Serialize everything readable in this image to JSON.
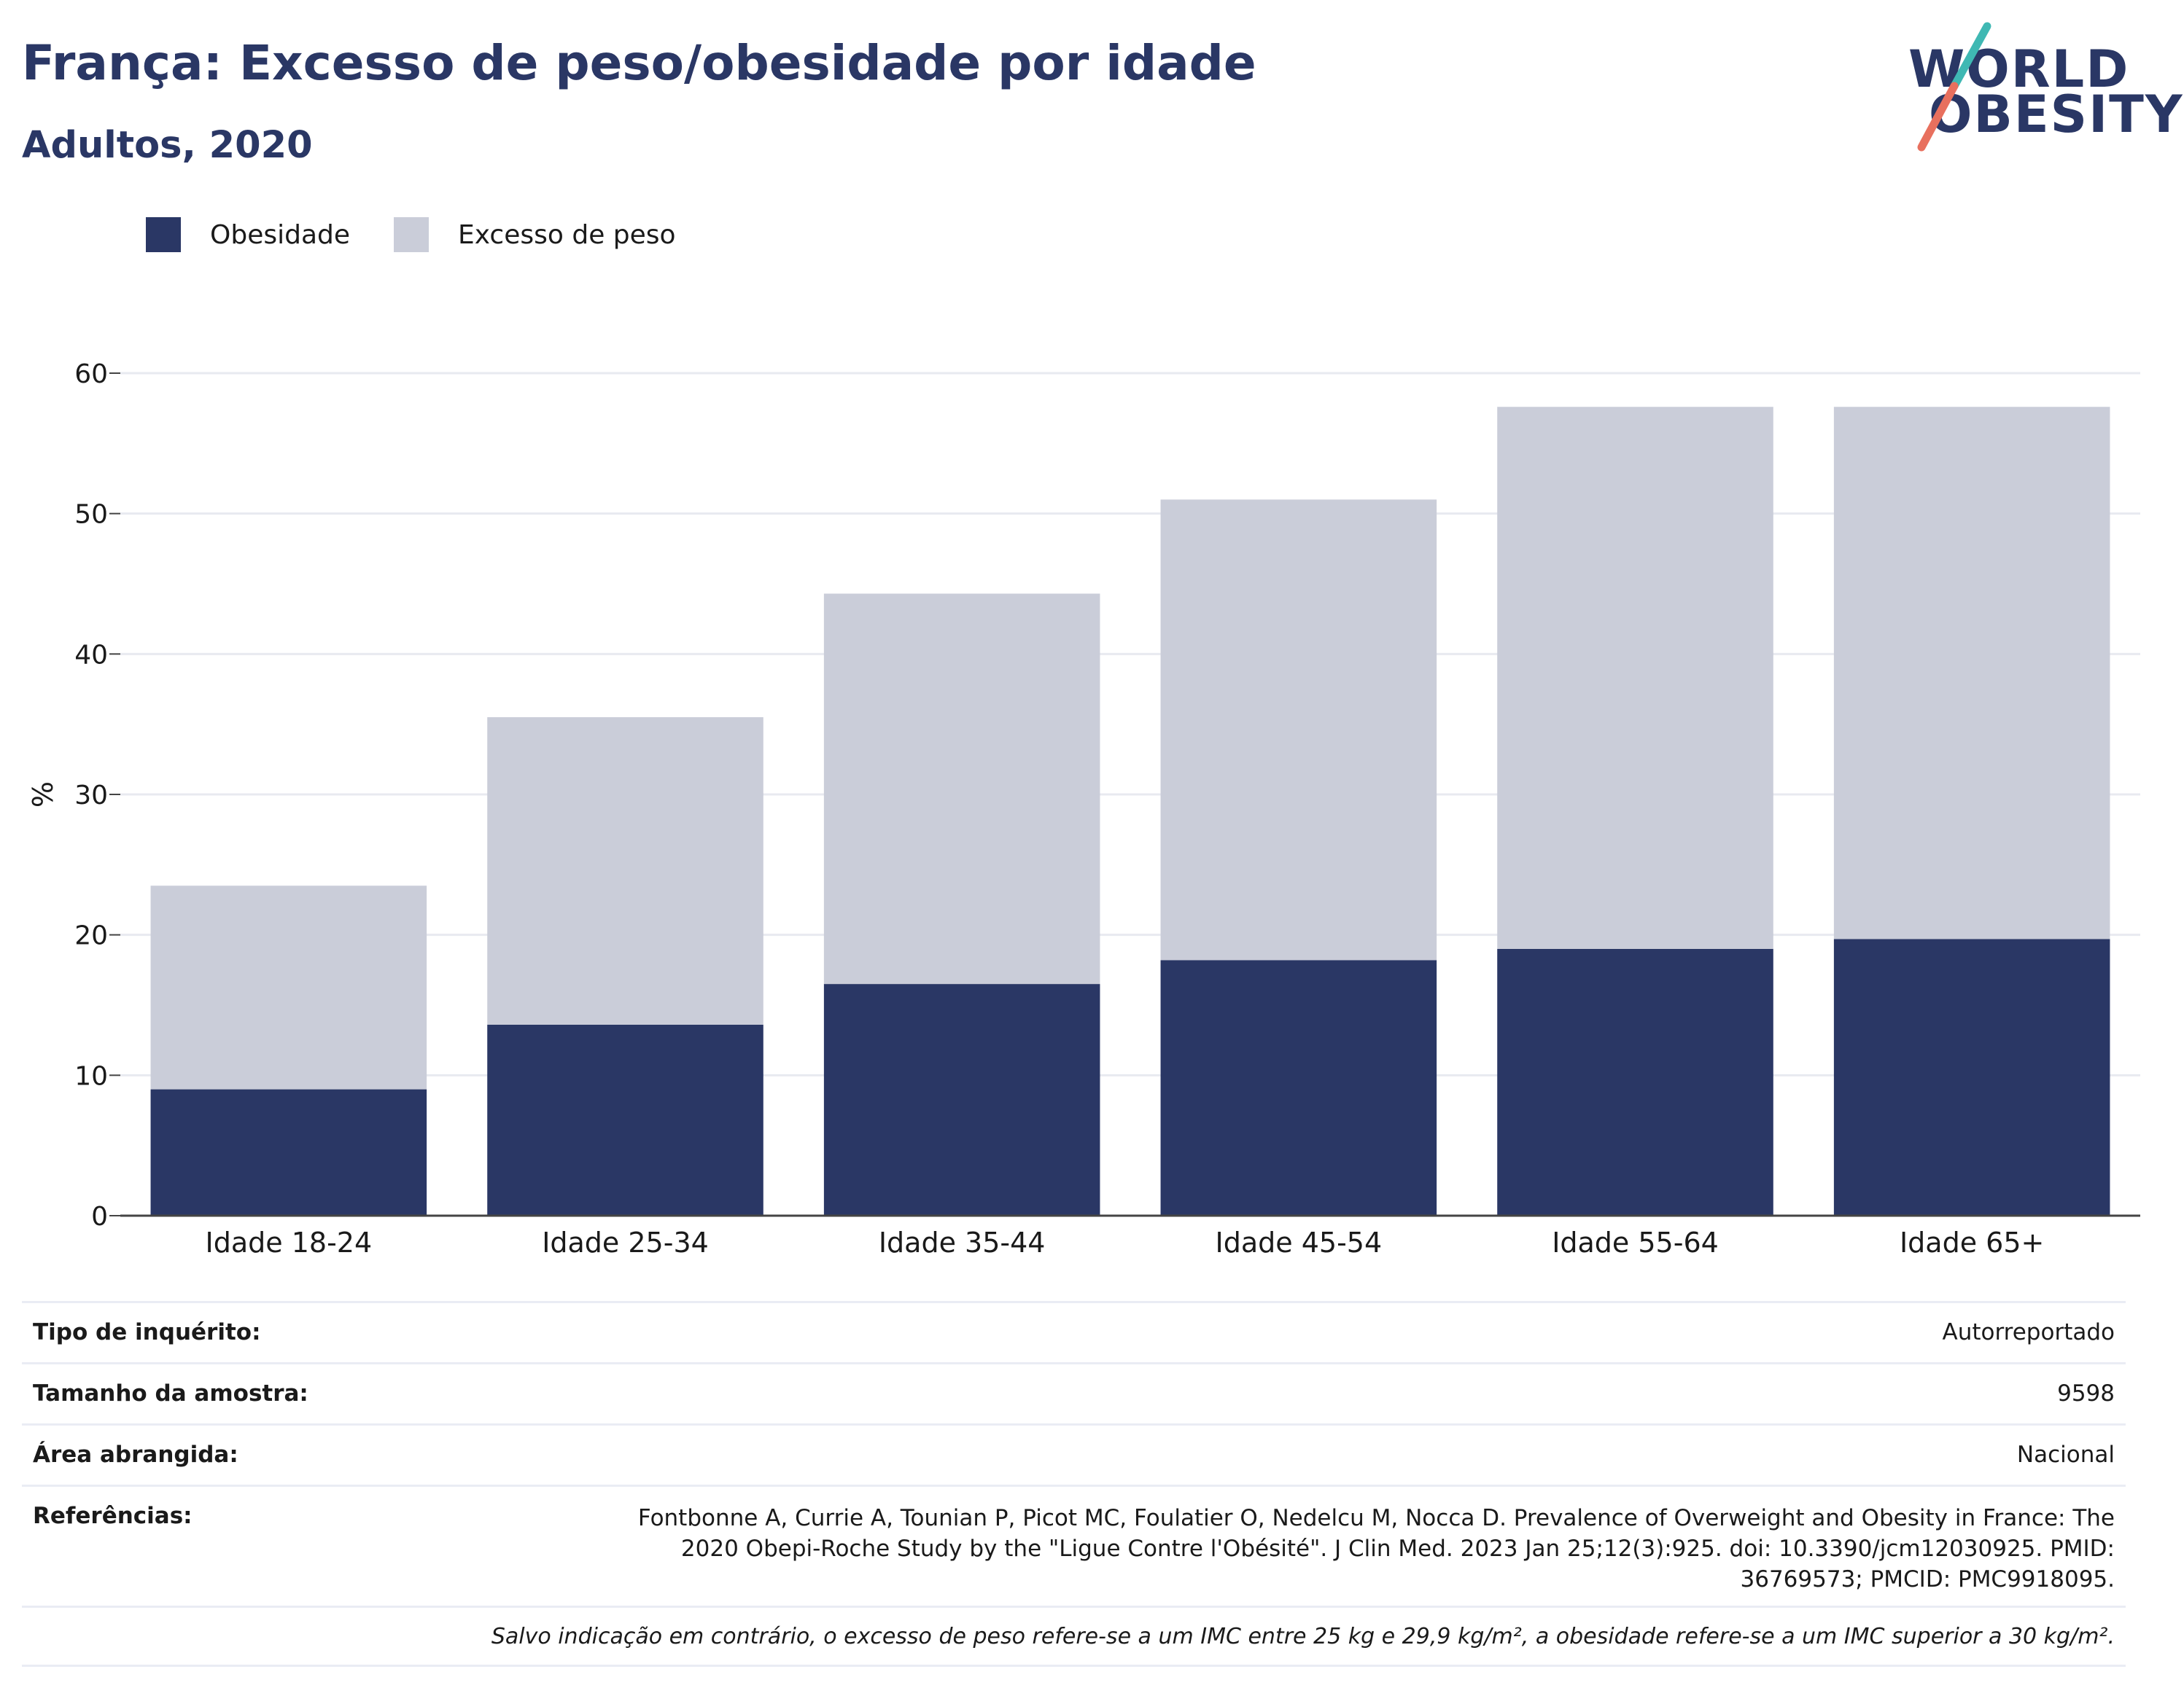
{
  "header": {
    "title": "França: Excesso de peso/obesidade por idade",
    "subtitle": "Adultos, 2020"
  },
  "logo": {
    "line1": "WORLD",
    "line2": "OBESITY"
  },
  "legend": [
    {
      "label": "Obesidade",
      "color": "#2a3765"
    },
    {
      "label": "Excesso de peso",
      "color": "#cacdd9"
    }
  ],
  "chart_data": {
    "type": "bar",
    "stacked": true,
    "categories": [
      "Idade 18-24",
      "Idade 25-34",
      "Idade 35-44",
      "Idade 45-54",
      "Idade 55-64",
      "Idade 65+"
    ],
    "series": [
      {
        "name": "Obesidade",
        "color": "#2a3765",
        "values": [
          9.0,
          13.6,
          16.5,
          18.2,
          19.0,
          19.7
        ]
      },
      {
        "name": "Excesso de peso",
        "color": "#cacdd9",
        "values": [
          14.5,
          21.9,
          27.8,
          32.8,
          38.6,
          37.9
        ]
      }
    ],
    "ylabel": "%",
    "ylim": [
      0,
      60
    ],
    "yticks": [
      0,
      10,
      20,
      30,
      40,
      50,
      60
    ],
    "grid": true,
    "legend_position": "top-left"
  },
  "info": {
    "survey_type_label": "Tipo de inquérito:",
    "survey_type_value": "Autorreportado",
    "sample_size_label": "Tamanho da amostra:",
    "sample_size_value": "9598",
    "area_label": "Área abrangida:",
    "area_value": "Nacional",
    "references_label": "Referências:",
    "references_value": "Fontbonne A, Currie A, Tounian P, Picot MC, Foulatier O, Nedelcu M, Nocca D. Prevalence of Overweight and Obesity in France: The 2020 Obepi-Roche Study by the \"Ligue Contre l'Obésité\". J Clin Med. 2023 Jan 25;12(3):925. doi: 10.3390/jcm12030925. PMID: 36769573; PMCID: PMC9918095.",
    "note": "Salvo indicação em contrário, o excesso de peso refere-se a um IMC entre 25 kg e 29,9 kg/m², a obesidade refere-se a um IMC superior a 30 kg/m²."
  }
}
